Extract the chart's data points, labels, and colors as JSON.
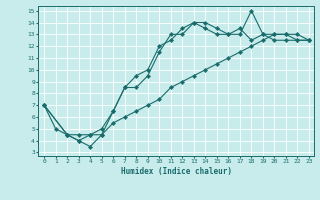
{
  "xlabel": "Humidex (Indice chaleur)",
  "ylabel": "",
  "bg_color": "#c8ecec",
  "line_color": "#1a6b6b",
  "grid_color": "#ffffff",
  "xlim": [
    -0.5,
    23.4
  ],
  "ylim": [
    2.7,
    15.4
  ],
  "xticks": [
    0,
    1,
    2,
    3,
    4,
    5,
    6,
    7,
    8,
    9,
    10,
    11,
    12,
    13,
    14,
    15,
    16,
    17,
    18,
    19,
    20,
    21,
    22,
    23
  ],
  "yticks": [
    3,
    4,
    5,
    6,
    7,
    8,
    9,
    10,
    11,
    12,
    13,
    14,
    15
  ],
  "line1_x": [
    0,
    1,
    2,
    3,
    4,
    5,
    6,
    7,
    8,
    9,
    10,
    11,
    12,
    13,
    14,
    15,
    16,
    17,
    18,
    19,
    20,
    21,
    22,
    23
  ],
  "line1_y": [
    7,
    5,
    4.5,
    4.5,
    4.5,
    5,
    6.5,
    8.5,
    9.5,
    10.0,
    12.0,
    12.5,
    13.5,
    14.0,
    13.5,
    13.0,
    13.0,
    13.5,
    12.5,
    13.0,
    12.5,
    12.5,
    12.5,
    12.5
  ],
  "line2_x": [
    0,
    2,
    3,
    4,
    5,
    6,
    7,
    8,
    9,
    10,
    11,
    12,
    13,
    14,
    15,
    16,
    17,
    18,
    19,
    20,
    21,
    22,
    23
  ],
  "line2_y": [
    7,
    4.5,
    4.0,
    3.5,
    4.5,
    6.5,
    8.5,
    8.5,
    9.5,
    11.5,
    13.0,
    13.0,
    14.0,
    14.0,
    13.5,
    13.0,
    13.0,
    15.0,
    13.0,
    13.0,
    13.0,
    12.5,
    12.5
  ],
  "line3_x": [
    0,
    2,
    3,
    4,
    5,
    6,
    7,
    8,
    9,
    10,
    11,
    12,
    13,
    14,
    15,
    16,
    17,
    18,
    19,
    20,
    21,
    22,
    23
  ],
  "line3_y": [
    7,
    4.5,
    4.0,
    4.5,
    4.5,
    5.5,
    6.0,
    6.5,
    7.0,
    7.5,
    8.5,
    9.0,
    9.5,
    10.0,
    10.5,
    11.0,
    11.5,
    12.0,
    12.5,
    13.0,
    13.0,
    13.0,
    12.5
  ]
}
